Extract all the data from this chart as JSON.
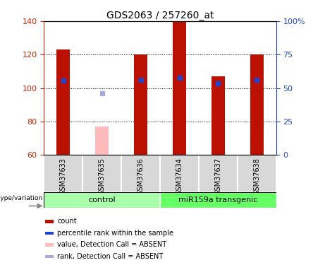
{
  "title": "GDS2063 / 257260_at",
  "samples": [
    "GSM37633",
    "GSM37635",
    "GSM37636",
    "GSM37634",
    "GSM37637",
    "GSM37638"
  ],
  "red_bar_values": [
    123,
    null,
    120,
    140,
    107,
    120
  ],
  "pink_bar_values": [
    null,
    77,
    null,
    null,
    null,
    null
  ],
  "blue_square_values": [
    104.5,
    null,
    105,
    106,
    103,
    105
  ],
  "gray_square_values": [
    null,
    97,
    null,
    null,
    null,
    null
  ],
  "ylim_left": [
    60,
    140
  ],
  "ylim_right": [
    0,
    100
  ],
  "yticks_left": [
    60,
    80,
    100,
    120,
    140
  ],
  "yticks_right": [
    0,
    25,
    50,
    75,
    100
  ],
  "ytick_labels_right": [
    "0",
    "25",
    "50",
    "75",
    "100%"
  ],
  "control_label": "control",
  "transgenic_label": "miR159a transgenic",
  "genotype_label": "genotype/variation",
  "legend_labels": [
    "count",
    "percentile rank within the sample",
    "value, Detection Call = ABSENT",
    "rank, Detection Call = ABSENT"
  ],
  "bar_width": 0.35,
  "red_color": "#bb1100",
  "pink_color": "#ffbbbb",
  "blue_color": "#2244cc",
  "gray_blue_color": "#aaaadd",
  "control_bg": "#aaffaa",
  "transgenic_bg": "#66ff66",
  "sample_box_bg": "#d8d8d8",
  "axis_left_color": "#cc2200",
  "axis_right_color": "#2244cc",
  "white": "#ffffff",
  "black": "#000000"
}
